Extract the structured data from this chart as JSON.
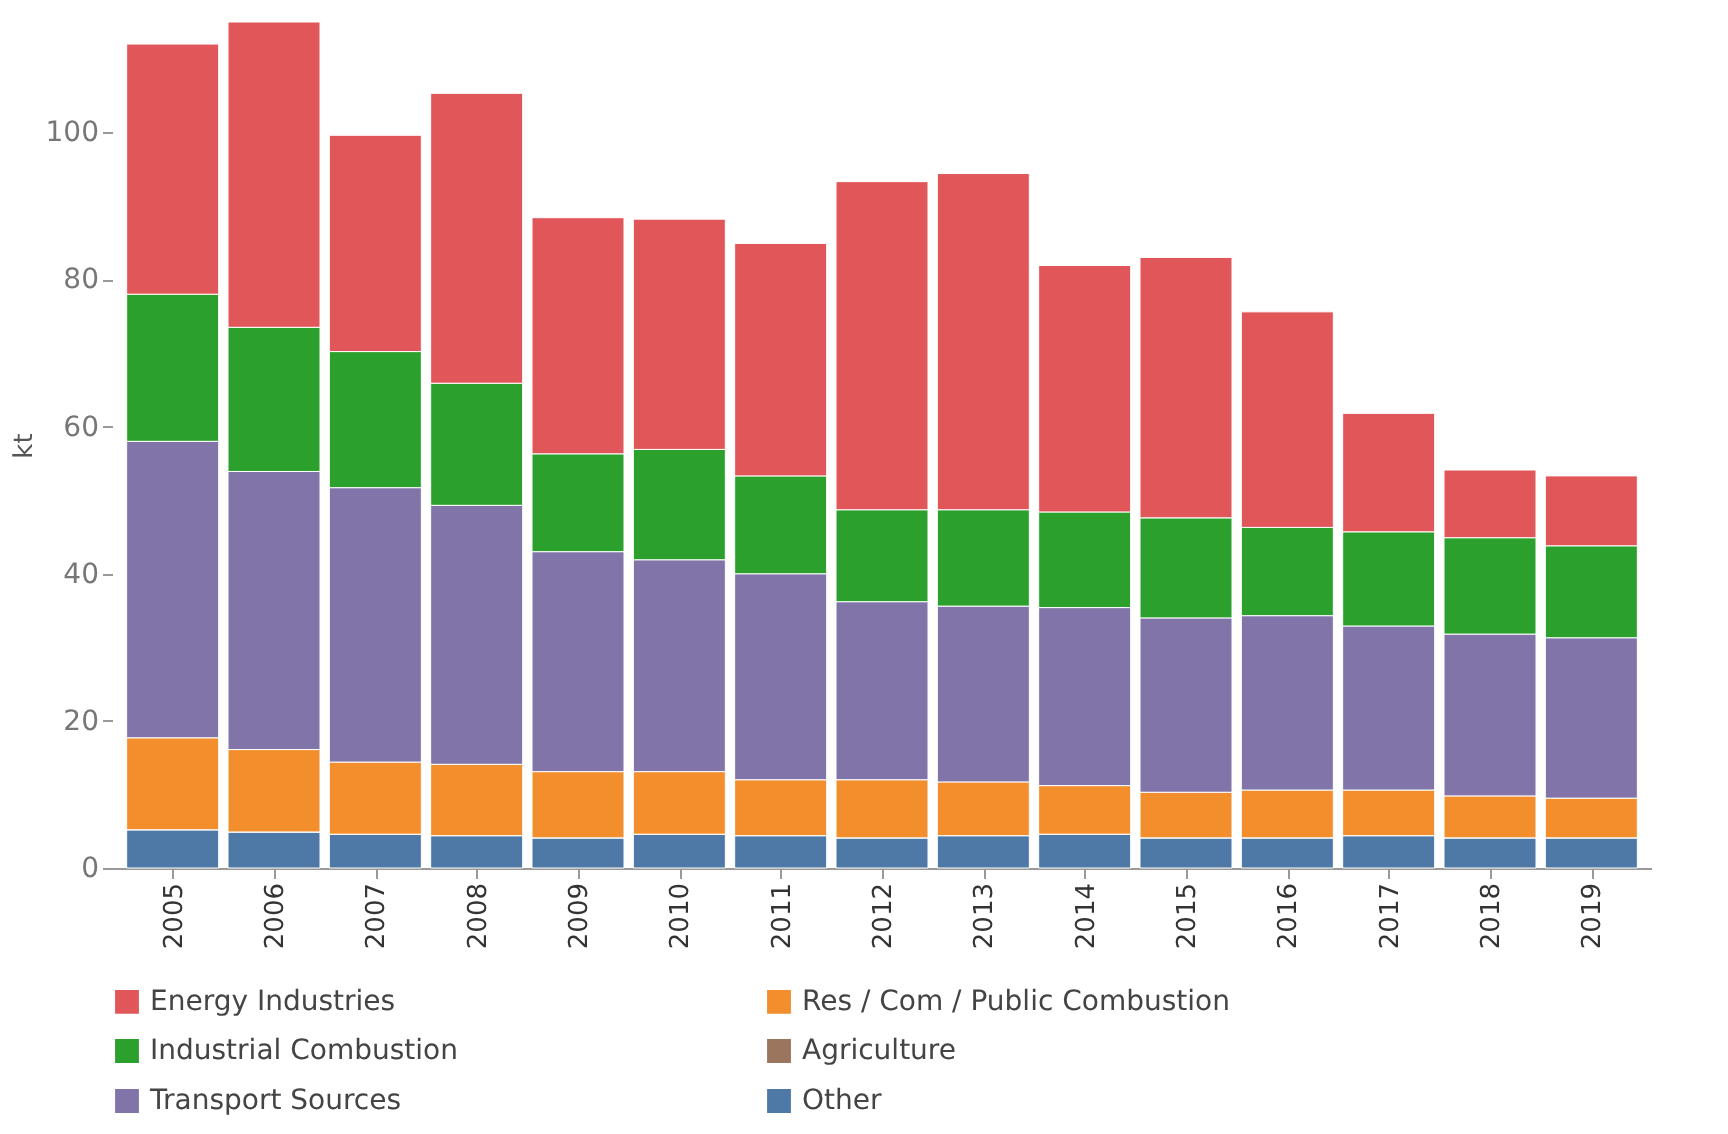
{
  "chart_data": {
    "type": "bar",
    "stacked": true,
    "ylabel": "kt",
    "categories": [
      "2005",
      "2006",
      "2007",
      "2008",
      "2009",
      "2010",
      "2011",
      "2012",
      "2013",
      "2014",
      "2015",
      "2016",
      "2017",
      "2018",
      "2019"
    ],
    "series": [
      {
        "name": "Other",
        "color": "#4e79a7",
        "values": [
          5.2,
          4.9,
          4.6,
          4.4,
          4.1,
          4.6,
          4.4,
          4.1,
          4.4,
          4.6,
          4.1,
          4.1,
          4.4,
          4.1,
          4.1
        ]
      },
      {
        "name": "Agriculture",
        "color": "#9c755f",
        "values": [
          0,
          0,
          0,
          0,
          0,
          0,
          0,
          0,
          0,
          0,
          0,
          0,
          0,
          0,
          0
        ]
      },
      {
        "name": "Res / Com / Public Combustion",
        "color": "#f28e2b",
        "values": [
          12.5,
          11.2,
          9.8,
          9.7,
          9,
          8.5,
          7.6,
          7.9,
          7.3,
          6.6,
          6.2,
          6.5,
          6.2,
          5.7,
          5.4
        ]
      },
      {
        "name": "Transport Sources",
        "color": "#8074a8",
        "values": [
          40.3,
          37.8,
          37.3,
          35.2,
          29.9,
          28.8,
          28,
          24.2,
          23.9,
          24.2,
          23.7,
          23.7,
          22.3,
          22,
          21.8
        ]
      },
      {
        "name": "Industrial Combustion",
        "color": "#2ca02c",
        "values": [
          20,
          19.6,
          18.5,
          16.6,
          13.3,
          15,
          13.3,
          12.5,
          13.1,
          13,
          13.6,
          12,
          12.8,
          13.1,
          12.5
        ]
      },
      {
        "name": "Energy Industries",
        "color": "#e15759",
        "values": [
          34,
          41.5,
          29.4,
          39.4,
          32.1,
          31.3,
          31.6,
          44.6,
          45.7,
          33.5,
          35.4,
          29.3,
          16.1,
          9.2,
          9.5
        ]
      }
    ],
    "ylim": [
      0,
      115
    ],
    "yticks": [
      0,
      20,
      40,
      60,
      80,
      100
    ],
    "grid": false,
    "legend": "bottom"
  }
}
